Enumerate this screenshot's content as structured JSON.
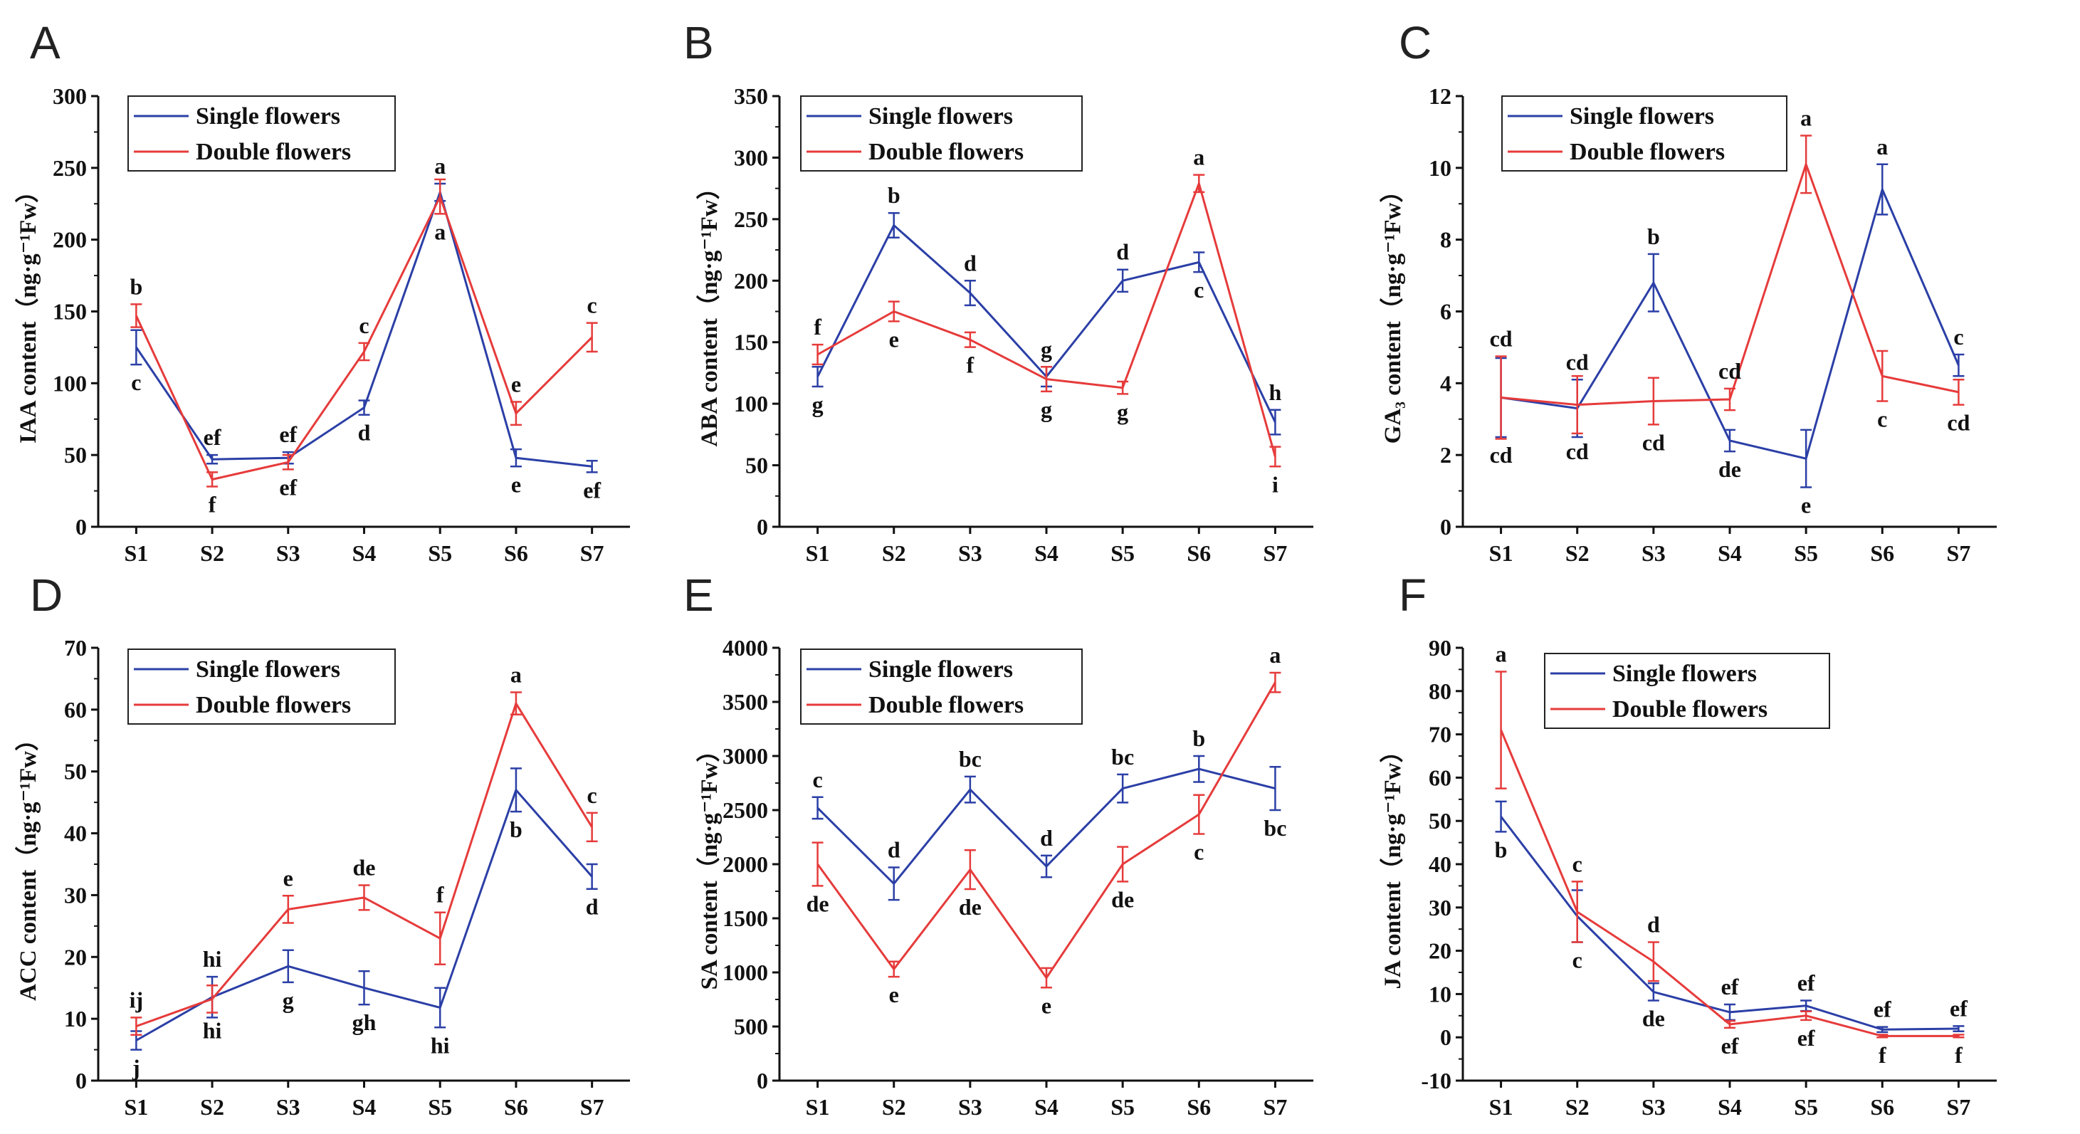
{
  "colors": {
    "single": "#2b3fa6",
    "double": "#e63b3b",
    "axis": "#111111"
  },
  "chart_data": [
    {
      "type": "line",
      "panel": "A",
      "ylabel": "IAA content（ng·g⁻¹Fw）",
      "ylim": [
        0,
        300
      ],
      "yticks": [
        0,
        50,
        100,
        150,
        200,
        250,
        300
      ],
      "categories": [
        "S1",
        "S2",
        "S3",
        "S4",
        "S5",
        "S6",
        "S7"
      ],
      "legend": [
        "Single flowers",
        "Double flowers"
      ],
      "series": [
        {
          "name": "Single flowers",
          "color_key": "single",
          "values": [
            125,
            47,
            48,
            83,
            233,
            48,
            42
          ],
          "errors": [
            12,
            3,
            4,
            5,
            6,
            6,
            4
          ],
          "labels": [
            "c",
            "ef",
            "ef",
            "d",
            "a",
            "e",
            "ef"
          ]
        },
        {
          "name": "Double flowers",
          "color_key": "double",
          "values": [
            147,
            33,
            45,
            122,
            230,
            79,
            132
          ],
          "errors": [
            8,
            5,
            5,
            6,
            12,
            8,
            10
          ],
          "labels": [
            "b",
            "f",
            "ef",
            "c",
            "a",
            "e",
            "c"
          ]
        }
      ]
    },
    {
      "type": "line",
      "panel": "B",
      "ylabel": "ABA content（ng·g⁻¹Fw）",
      "ylim": [
        0,
        350
      ],
      "yticks": [
        0,
        50,
        100,
        150,
        200,
        250,
        300,
        350
      ],
      "categories": [
        "S1",
        "S2",
        "S3",
        "S4",
        "S5",
        "S6",
        "S7"
      ],
      "legend": [
        "Single flowers",
        "Double flowers"
      ],
      "series": [
        {
          "name": "Single flowers",
          "color_key": "single",
          "values": [
            122,
            245,
            190,
            122,
            200,
            215,
            85
          ],
          "errors": [
            8,
            10,
            10,
            8,
            9,
            8,
            10
          ],
          "labels": [
            "g",
            "b",
            "d",
            "g",
            "d",
            "c",
            "h"
          ]
        },
        {
          "name": "Double flowers",
          "color_key": "double",
          "values": [
            140,
            175,
            152,
            120,
            113,
            279,
            57
          ],
          "errors": [
            8,
            8,
            6,
            10,
            5,
            7,
            8
          ],
          "labels": [
            "f",
            "e",
            "f",
            "g",
            "g",
            "a",
            "i"
          ]
        }
      ]
    },
    {
      "type": "line",
      "panel": "C",
      "ylabel": "GA₃ content（ng·g⁻¹Fw）",
      "ylim": [
        0,
        12
      ],
      "yticks": [
        0,
        2,
        4,
        6,
        8,
        10,
        12
      ],
      "categories": [
        "S1",
        "S2",
        "S3",
        "S4",
        "S5",
        "S6",
        "S7"
      ],
      "legend": [
        "Single flowers",
        "Double flowers"
      ],
      "series": [
        {
          "name": "Single flowers",
          "color_key": "single",
          "values": [
            3.6,
            3.3,
            6.8,
            2.4,
            1.9,
            9.4,
            4.5
          ],
          "errors": [
            1.1,
            0.8,
            0.8,
            0.3,
            0.8,
            0.7,
            0.3
          ],
          "labels": [
            "cd",
            "cd",
            "b",
            "de",
            "e",
            "a",
            "c"
          ]
        },
        {
          "name": "Double flowers",
          "color_key": "double",
          "values": [
            3.6,
            3.4,
            3.5,
            3.55,
            10.1,
            4.2,
            3.75
          ],
          "errors": [
            1.15,
            0.8,
            0.65,
            0.3,
            0.8,
            0.7,
            0.35
          ],
          "labels": [
            "cd",
            "cd",
            "cd",
            "cd",
            "a",
            "c",
            "cd"
          ]
        }
      ]
    },
    {
      "type": "line",
      "panel": "D",
      "ylabel": "ACC content（ng·g⁻¹Fw）",
      "ylim": [
        0,
        70
      ],
      "yticks": [
        0,
        10,
        20,
        30,
        40,
        50,
        60,
        70
      ],
      "categories": [
        "S1",
        "S2",
        "S3",
        "S4",
        "S5",
        "S6",
        "S7"
      ],
      "legend": [
        "Single flowers",
        "Double flowers"
      ],
      "series": [
        {
          "name": "Single flowers",
          "color_key": "single",
          "values": [
            6.5,
            13.5,
            18.5,
            15,
            11.8,
            47,
            33
          ],
          "errors": [
            1.5,
            3.3,
            2.6,
            2.7,
            3.2,
            3.5,
            2
          ],
          "labels": [
            "j",
            "hi",
            "g",
            "gh",
            "hi",
            "b",
            "d"
          ]
        },
        {
          "name": "Double flowers",
          "color_key": "double",
          "values": [
            8.8,
            13.2,
            27.7,
            29.6,
            23,
            61,
            41
          ],
          "errors": [
            1.4,
            2.2,
            2.2,
            2,
            4.2,
            1.8,
            2.3
          ],
          "labels": [
            "ij",
            "hi",
            "e",
            "de",
            "f",
            "a",
            "c"
          ]
        }
      ]
    },
    {
      "type": "line",
      "panel": "E",
      "ylabel": "SA content（ng·g⁻¹Fw）",
      "ylim": [
        0,
        4000
      ],
      "yticks": [
        0,
        500,
        1000,
        1500,
        2000,
        2500,
        3000,
        3500,
        4000
      ],
      "categories": [
        "S1",
        "S2",
        "S3",
        "S4",
        "S5",
        "S6",
        "S7"
      ],
      "legend": [
        "Single flowers",
        "Double flowers"
      ],
      "series": [
        {
          "name": "Single flowers",
          "color_key": "single",
          "values": [
            2520,
            1820,
            2690,
            1980,
            2700,
            2880,
            2700
          ],
          "errors": [
            100,
            150,
            120,
            100,
            130,
            120,
            200
          ],
          "labels": [
            "c",
            "d",
            "bc",
            "d",
            "bc",
            "b",
            "bc"
          ]
        },
        {
          "name": "Double flowers",
          "color_key": "double",
          "values": [
            2000,
            1030,
            1950,
            950,
            2000,
            2460,
            3680
          ],
          "errors": [
            200,
            70,
            180,
            90,
            160,
            180,
            90
          ],
          "labels": [
            "de",
            "e",
            "de",
            "e",
            "de",
            "c",
            "a"
          ]
        }
      ]
    },
    {
      "type": "line",
      "panel": "F",
      "ylabel": "JA content（ng·g⁻¹Fw）",
      "ylim": [
        -10,
        90
      ],
      "yticks": [
        -10,
        0,
        10,
        20,
        30,
        40,
        50,
        60,
        70,
        80,
        90
      ],
      "categories": [
        "S1",
        "S2",
        "S3",
        "S4",
        "S5",
        "S6",
        "S7"
      ],
      "legend": [
        "Single flowers",
        "Double flowers"
      ],
      "series": [
        {
          "name": "Single flowers",
          "color_key": "single",
          "values": [
            51,
            28,
            10.5,
            5.8,
            7.3,
            1.8,
            2
          ],
          "errors": [
            3.5,
            6,
            2,
            1.8,
            1.2,
            0.6,
            0.6
          ],
          "labels": [
            "b",
            "c",
            "de",
            "ef",
            "ef",
            "ef",
            "ef"
          ]
        },
        {
          "name": "Double flowers",
          "color_key": "double",
          "values": [
            71,
            29,
            17.5,
            3,
            5,
            0.3,
            0.3
          ],
          "errors": [
            13.5,
            7,
            4.5,
            0.8,
            1,
            0.3,
            0.3
          ],
          "labels": [
            "a",
            "c",
            "d",
            "ef",
            "ef",
            "f",
            "f"
          ]
        }
      ]
    }
  ]
}
